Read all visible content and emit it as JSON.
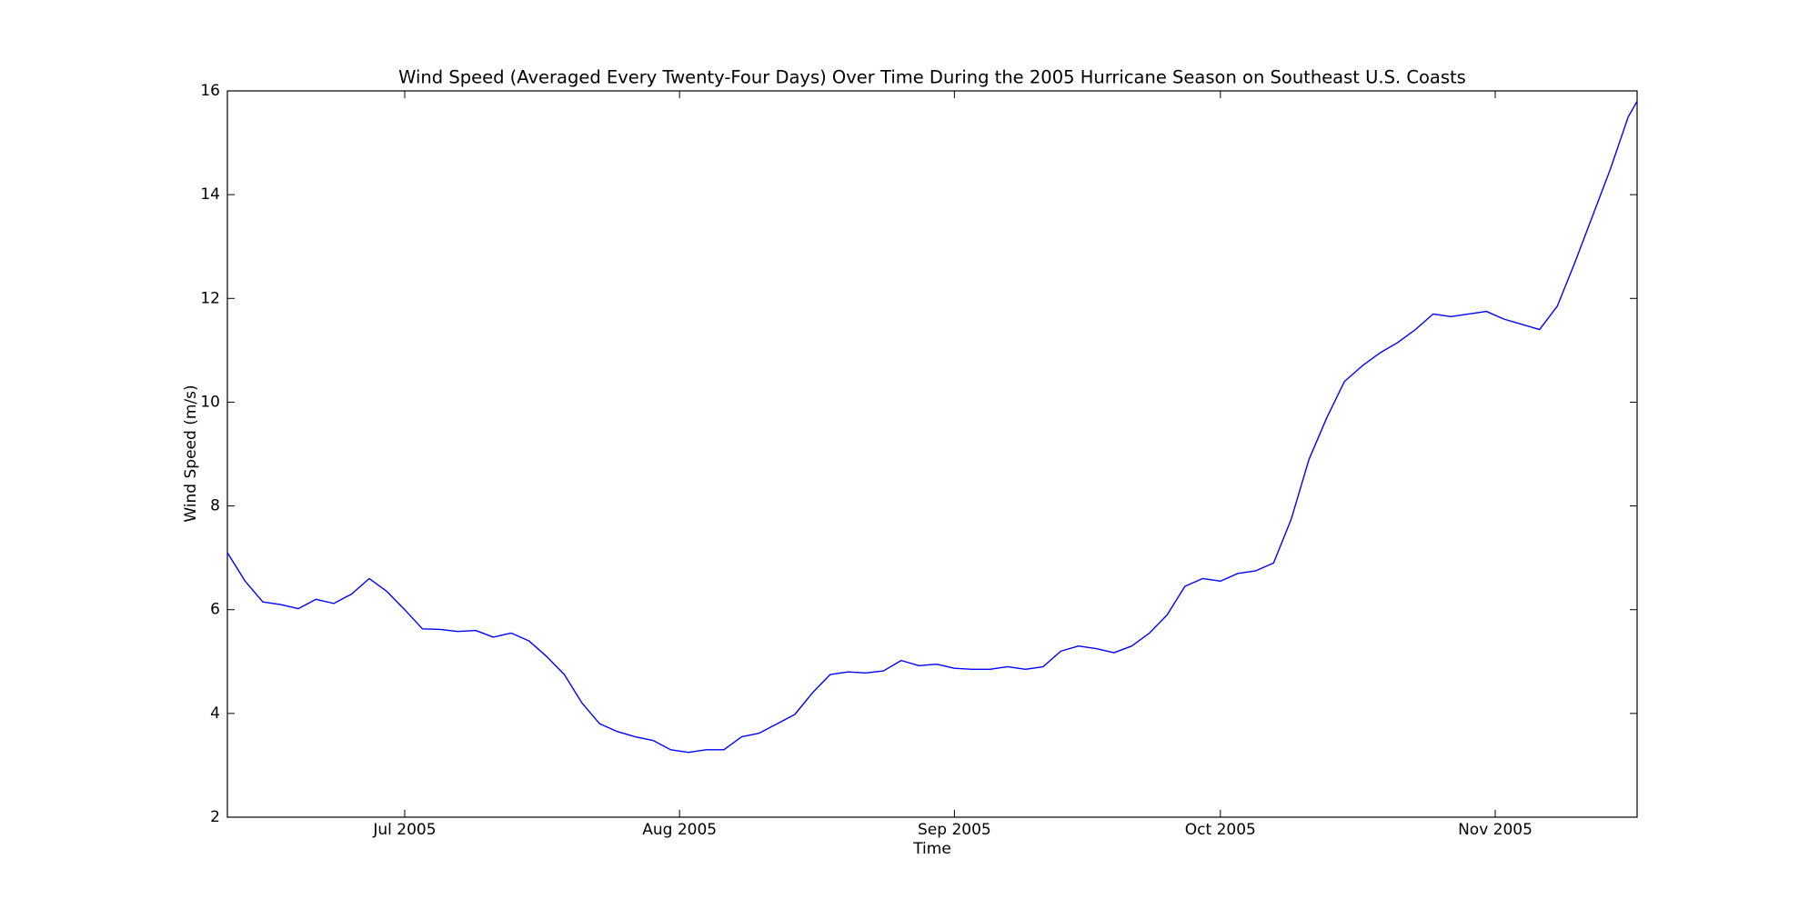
{
  "chart_data": {
    "type": "line",
    "title": "Wind Speed (Averaged Every Twenty-Four Days) Over Time During the 2005 Hurricane Season on Southeast U.S. Coasts",
    "x_label": "Time",
    "y_label": "Wind Speed (m/s)",
    "x": [
      162,
      164,
      166,
      168,
      170,
      172,
      174,
      176,
      178,
      180,
      182,
      184,
      186,
      188,
      190,
      192,
      194,
      196,
      198,
      200,
      202,
      204,
      206,
      208,
      210,
      212,
      214,
      216,
      218,
      220,
      222,
      224,
      226,
      228,
      230,
      232,
      234,
      236,
      238,
      240,
      242,
      244,
      246,
      248,
      250,
      252,
      254,
      256,
      258,
      260,
      262,
      264,
      266,
      268,
      270,
      272,
      274,
      276,
      278,
      280,
      282,
      284,
      286,
      288,
      290,
      292,
      294,
      296,
      298,
      300,
      302,
      304,
      306,
      308,
      310,
      312,
      314,
      316,
      318,
      320,
      321
    ],
    "values": [
      7.1,
      6.55,
      6.15,
      6.1,
      6.02,
      6.2,
      6.12,
      6.3,
      6.6,
      6.35,
      6.0,
      5.63,
      5.62,
      5.58,
      5.6,
      5.47,
      5.55,
      5.4,
      5.1,
      4.75,
      4.2,
      3.8,
      3.65,
      3.55,
      3.48,
      3.3,
      3.25,
      3.3,
      3.3,
      3.55,
      3.62,
      3.8,
      3.98,
      4.4,
      4.75,
      4.8,
      4.78,
      4.82,
      5.02,
      4.92,
      4.95,
      4.87,
      4.85,
      4.85,
      4.9,
      4.85,
      4.9,
      5.2,
      5.3,
      5.25,
      5.17,
      5.3,
      5.55,
      5.9,
      6.45,
      6.6,
      6.55,
      6.7,
      6.75,
      6.9,
      7.75,
      8.9,
      9.7,
      10.4,
      10.7,
      10.95,
      11.15,
      11.4,
      11.7,
      11.65,
      11.7,
      11.75,
      11.6,
      11.5,
      11.4,
      11.85,
      12.7,
      13.6,
      14.5,
      15.5,
      15.8
    ],
    "color": "#0000ff",
    "xlim": [
      162,
      321
    ],
    "xticks": [
      {
        "value": 182,
        "label": "Jul 2005"
      },
      {
        "value": 213,
        "label": "Aug 2005"
      },
      {
        "value": 244,
        "label": "Sep 2005"
      },
      {
        "value": 274,
        "label": "Oct 2005"
      },
      {
        "value": 305,
        "label": "Nov 2005"
      }
    ],
    "ylim": [
      2,
      16
    ],
    "yticks": [
      2,
      4,
      6,
      8,
      10,
      12,
      14,
      16
    ],
    "grid": false
  }
}
